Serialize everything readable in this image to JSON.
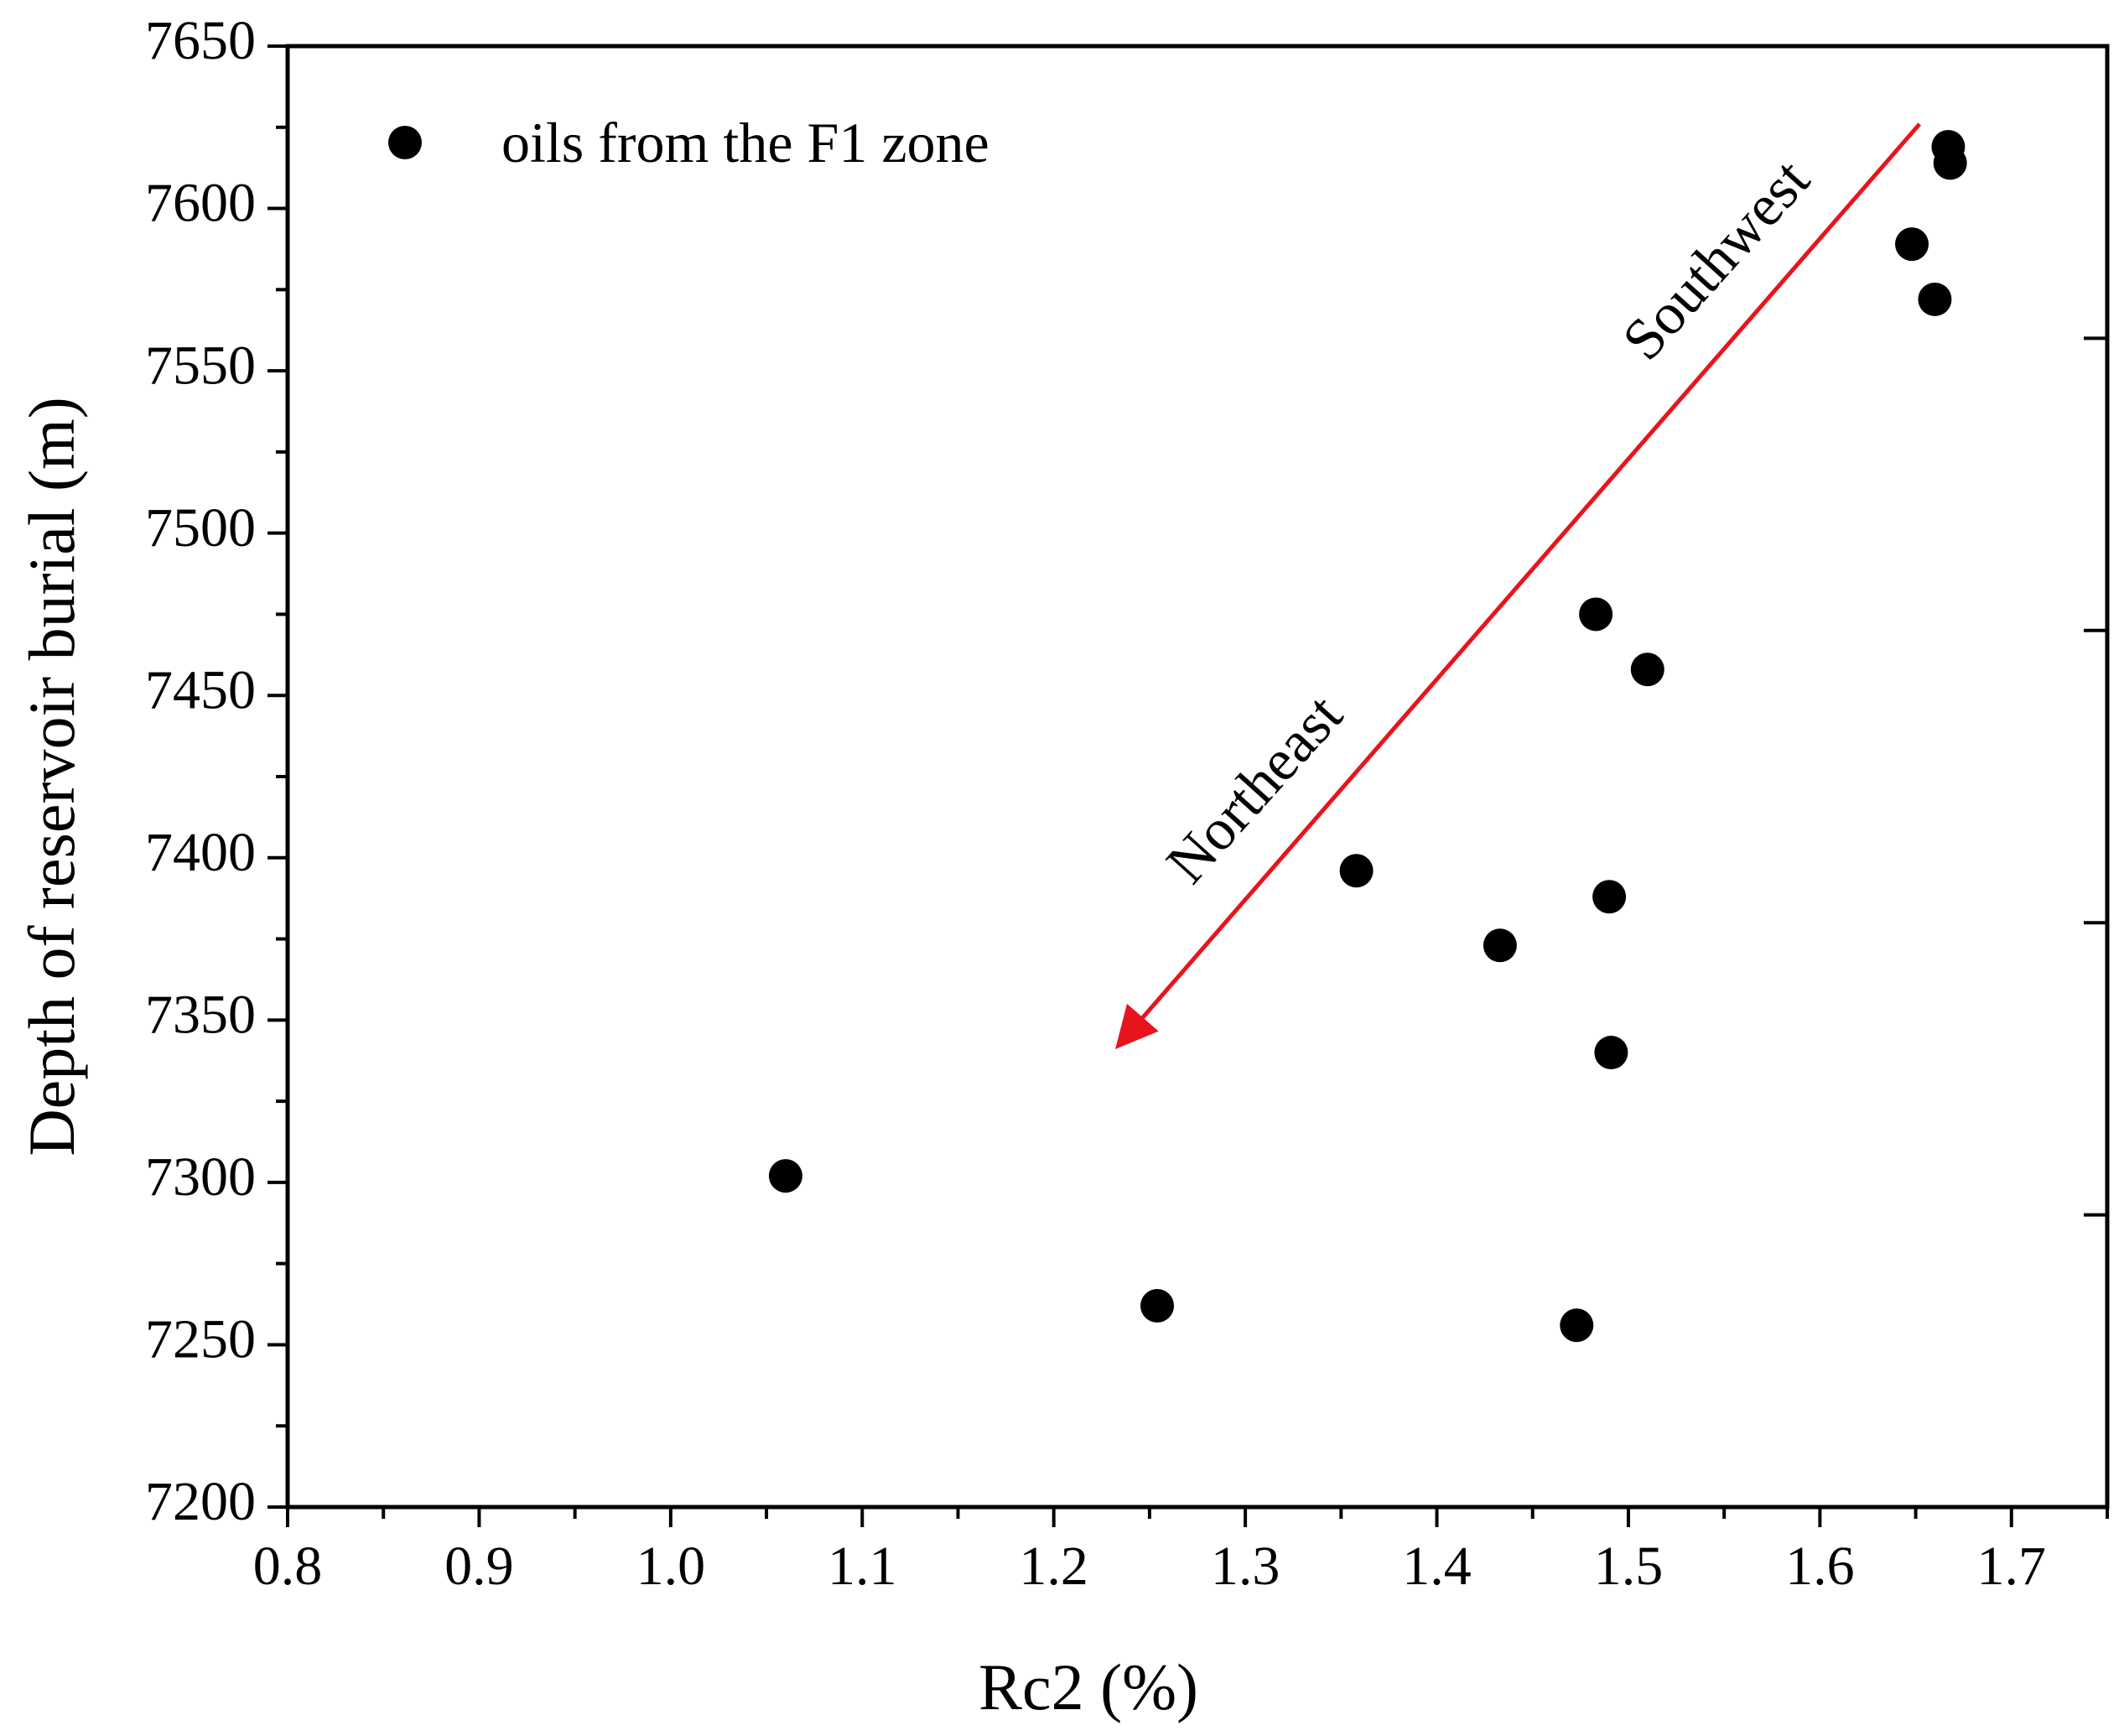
{
  "chart_data": {
    "type": "scatter",
    "title": "",
    "xlabel": "Rc2 (%)",
    "ylabel": "Depth of reservoir burial (m)",
    "xlim": [
      0.8,
      1.75
    ],
    "ylim": [
      7200,
      7650
    ],
    "x_ticks": [
      0.8,
      0.9,
      1.0,
      1.1,
      1.2,
      1.3,
      1.4,
      1.5,
      1.6,
      1.7
    ],
    "x_tick_labels": [
      "0.8",
      "0.9",
      "1.0",
      "1.1",
      "1.2",
      "1.3",
      "1.4",
      "1.5",
      "1.6",
      "1.7"
    ],
    "y_ticks": [
      7200,
      7250,
      7300,
      7350,
      7400,
      7450,
      7500,
      7550,
      7600,
      7650
    ],
    "y_tick_labels": [
      "7200",
      "7250",
      "7300",
      "7350",
      "7400",
      "7450",
      "7500",
      "7550",
      "7600",
      "7650"
    ],
    "grid": false,
    "legend_position": "top-left",
    "series": [
      {
        "name": "oils from the F1 zone",
        "color": "#000000",
        "marker": "circle",
        "x": [
          1.667,
          1.668,
          1.648,
          1.66,
          1.483,
          1.51,
          1.358,
          1.49,
          1.433,
          1.491,
          1.06,
          1.254,
          1.473
        ],
        "y": [
          7619,
          7614,
          7589,
          7572,
          7475,
          7458,
          7396,
          7388,
          7373,
          7340,
          7302,
          7262,
          7256
        ]
      }
    ],
    "annotations": [
      {
        "type": "arrow",
        "color": "#e8141c",
        "from": {
          "x": 1.652,
          "y": 7626
        },
        "to": {
          "x": 1.235,
          "y": 7343
        }
      },
      {
        "type": "text",
        "text": "Southwest",
        "x": 1.548,
        "y": 7583,
        "rotation_deg": -48
      },
      {
        "type": "text",
        "text": "Northeast",
        "x": 1.307,
        "y": 7420,
        "rotation_deg": -48
      }
    ]
  }
}
